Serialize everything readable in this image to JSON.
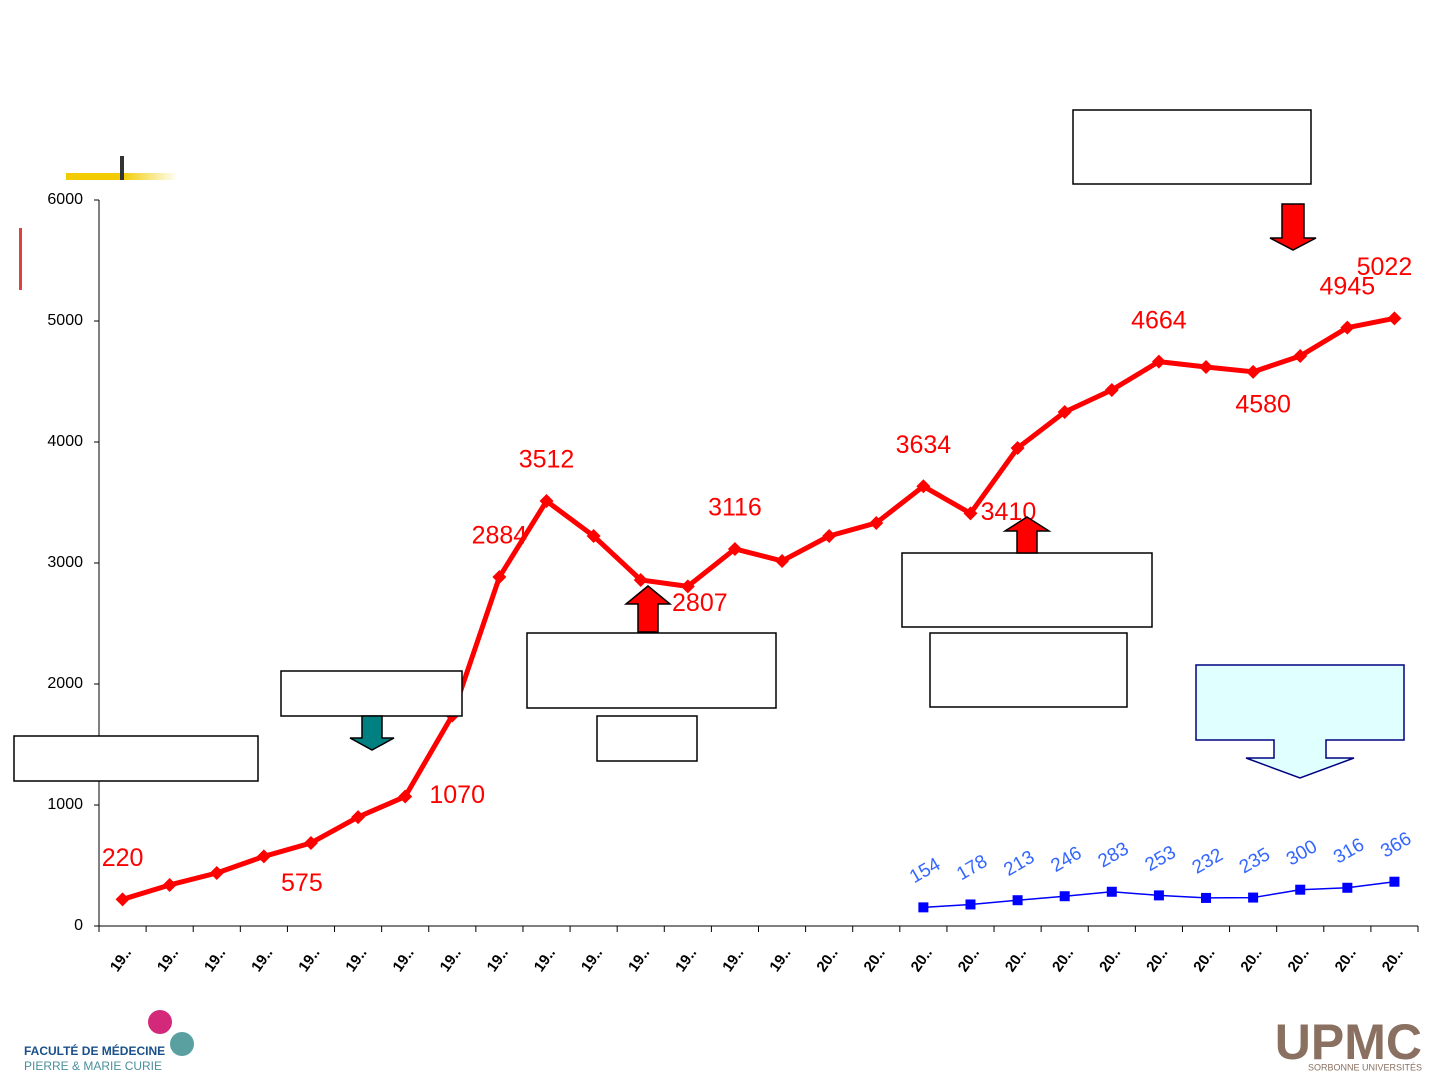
{
  "chart_data": {
    "type": "line",
    "categories": [
      "19..",
      "19..",
      "19..",
      "19..",
      "19..",
      "19..",
      "19..",
      "19..",
      "19..",
      "19..",
      "19..",
      "19..",
      "19..",
      "19..",
      "19..",
      "20..",
      "20..",
      "20..",
      "20..",
      "20..",
      "20..",
      "20..",
      "20..",
      "20..",
      "20..",
      "20..",
      "20..",
      "20.."
    ],
    "series": [
      {
        "name": null,
        "color": "#ff0000",
        "marker": "diamond",
        "values": [
          220,
          339,
          438,
          575,
          686,
          900,
          1070,
          1740,
          2884,
          3512,
          3223,
          2860,
          2807,
          3116,
          3017,
          3223,
          3331,
          3634,
          3410,
          3950,
          4248,
          4430,
          4664,
          4620,
          4580,
          4711,
          4945,
          5022
        ],
        "value_labels": [
          "220",
          null,
          null,
          "575",
          null,
          null,
          "1070",
          null,
          "2884",
          "3512",
          null,
          null,
          "2807",
          "3116",
          null,
          null,
          null,
          "3634",
          "3410",
          null,
          null,
          null,
          "4664",
          null,
          "4580",
          null,
          "4945",
          "5022"
        ]
      },
      {
        "name": null,
        "color": "#0000ff",
        "marker": "square",
        "values": [
          null,
          null,
          null,
          null,
          null,
          null,
          null,
          null,
          null,
          null,
          null,
          null,
          null,
          null,
          null,
          null,
          null,
          154,
          178,
          213,
          246,
          283,
          253,
          232,
          235,
          300,
          316,
          366
        ]
      }
    ],
    "ylim": [
      0,
      6000
    ],
    "yticks": [
      0,
      1000,
      2000,
      3000,
      4000,
      5000,
      6000
    ],
    "grid": false
  },
  "logos": {
    "left_line1": "FACULTÉ DE MÉDECINE",
    "left_line2": "PIERRE & MARIE CURIE",
    "right_main": "UPMC",
    "right_sub": "SORBONNE UNIVERSITÉS"
  }
}
